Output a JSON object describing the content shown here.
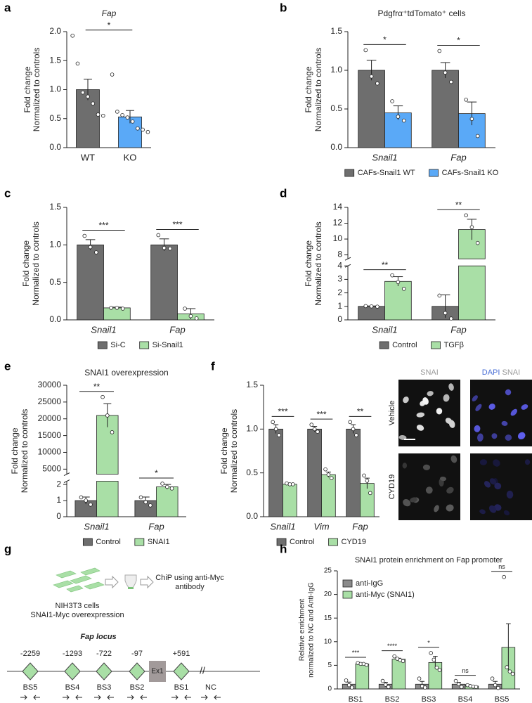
{
  "chart_data": [
    {
      "panel": "a",
      "type": "bar",
      "title": "Fap",
      "ylabel": [
        "Fold change",
        "Normalized to controls"
      ],
      "categories": [
        "WT",
        "KO"
      ],
      "series": [
        {
          "colors": [
            "#6e6e6e",
            "#5aa9f7"
          ],
          "values": [
            1.0,
            0.53
          ],
          "errors": [
            0.18,
            0.11
          ],
          "points": [
            [
              1.93,
              1.45,
              0.95,
              0.88,
              0.76,
              0.57,
              0.55
            ],
            [
              1.26,
              0.62,
              0.56,
              0.52,
              0.45,
              0.33,
              0.31,
              0.27
            ]
          ]
        }
      ],
      "significance": "*",
      "ylim": [
        0,
        2
      ],
      "yticks": [
        {
          "value": 0,
          "label": "0.0"
        },
        0.5,
        {
          "value": 1,
          "label": "1.0"
        },
        1.5,
        {
          "value": 2,
          "label": "2.0"
        }
      ]
    },
    {
      "panel": "b",
      "type": "bar",
      "title": "Pdgfrα⁺tdTomato⁺ cells",
      "ylabel": [
        "Fold change",
        "Normalized to controls"
      ],
      "categories": [
        "Snail1",
        "Fap"
      ],
      "category_style": "italic",
      "legend": "bottom",
      "series": [
        {
          "name": "CAFs-Snail1 WT",
          "color": "#6e6e6e",
          "values": [
            1.0,
            1.0
          ],
          "errors": [
            0.13,
            0.1
          ],
          "points": [
            [
              1.26,
              0.92,
              0.83
            ],
            [
              1.25,
              0.97,
              0.85
            ]
          ]
        },
        {
          "name": "CAFs-Snail1 KO",
          "color": "#5aa9f7",
          "values": [
            0.45,
            0.44
          ],
          "errors": [
            0.09,
            0.15
          ],
          "points": [
            [
              0.6,
              0.4,
              0.35
            ],
            [
              0.62,
              0.37,
              0.15
            ]
          ]
        }
      ],
      "significance": [
        "*",
        "*"
      ],
      "ylim": [
        0,
        1.5
      ],
      "yticks": [
        {
          "value": 0,
          "label": "0.0"
        },
        0.5,
        {
          "value": 1,
          "label": "1.0"
        },
        1.5
      ]
    },
    {
      "panel": "c",
      "type": "bar",
      "ylabel": [
        "Fold change",
        "Normalized to controls"
      ],
      "categories": [
        "Snail1",
        "Fap"
      ],
      "category_style": "italic",
      "legend": "bottom",
      "series": [
        {
          "name": "Si-C",
          "color": "#6e6e6e",
          "values": [
            1.0,
            1.0
          ],
          "errors": [
            0.07,
            0.08
          ],
          "points": [
            [
              1.12,
              0.97,
              0.9
            ],
            [
              1.13,
              0.96,
              0.95
            ]
          ]
        },
        {
          "name": "Si-Snail1",
          "color": "#a9dfa6",
          "values": [
            0.16,
            0.08
          ],
          "errors": [
            0.01,
            0.07
          ],
          "points": [
            [
              0.16,
              0.16,
              0.15
            ],
            [
              0.15,
              0.05,
              0.02
            ]
          ]
        }
      ],
      "significance": [
        "***",
        "***"
      ],
      "ylim": [
        0,
        1.5
      ],
      "yticks": [
        {
          "value": 0,
          "label": "0.0"
        },
        0.5,
        {
          "value": 1,
          "label": "1.0"
        },
        1.5
      ]
    },
    {
      "panel": "d",
      "type": "bar",
      "ylabel": [
        "Fold change",
        "Normalized to controls"
      ],
      "categories": [
        "Snail1",
        "Fap"
      ],
      "category_style": "italic",
      "legend": "bottom",
      "series": [
        {
          "name": "Control",
          "color": "#6e6e6e",
          "values": [
            1.0,
            1.0
          ],
          "errors": [
            0.03,
            0.85
          ],
          "points": [
            [
              1.02,
              1.0,
              0.98
            ],
            [
              1.8,
              0.5,
              0.1
            ]
          ]
        },
        {
          "name": "TGFβ",
          "color": "#a9dfa6",
          "values": [
            2.85,
            11.2
          ],
          "errors": [
            0.35,
            1.3
          ],
          "points": [
            [
              3.3,
              2.8,
              2.3
            ],
            [
              13.0,
              11.5,
              9.5
            ]
          ]
        }
      ],
      "significance": [
        "**",
        "**"
      ],
      "segments": [
        {
          "ylim": [
            0,
            4
          ],
          "yticks": [
            0,
            1,
            2,
            3,
            4
          ]
        },
        {
          "ylim": [
            7.5,
            14
          ],
          "yticks": [
            8,
            10,
            12,
            14
          ]
        }
      ]
    },
    {
      "panel": "e",
      "type": "bar",
      "title": "SNAI1 overexpression",
      "ylabel": [
        "Fold change",
        "Normalized to controls"
      ],
      "categories": [
        "Snail1",
        "Fap"
      ],
      "category_style": "italic",
      "legend": "bottom",
      "series": [
        {
          "name": "Control",
          "color": "#6e6e6e",
          "values": [
            1.0,
            1.0
          ],
          "errors": [
            0.22,
            0.22
          ],
          "points": [
            [
              1.2,
              1.0,
              0.75
            ],
            [
              1.2,
              0.9,
              0.7
            ]
          ]
        },
        {
          "name": "SNAI1",
          "color": "#a9dfa6",
          "values": [
            21000,
            1.85
          ],
          "errors": [
            3500,
            0.15
          ],
          "points": [
            [
              26500,
              21000,
              16000
            ],
            [
              2.05,
              1.85,
              1.75
            ]
          ]
        }
      ],
      "significance": [
        "**",
        "*"
      ],
      "segments": [
        {
          "ylim": [
            0,
            2.2
          ],
          "yticks": [
            0,
            1,
            2
          ]
        },
        {
          "ylim": [
            3500,
            30000
          ],
          "yticks": [
            5000,
            10000,
            15000,
            20000,
            25000,
            30000
          ]
        }
      ]
    },
    {
      "panel": "f",
      "type": "bar",
      "ylabel": [
        "Fold change",
        "Normalized to controls"
      ],
      "categories": [
        "Snail1",
        "Vim",
        "Fap"
      ],
      "category_style": "italic",
      "legend": "bottom",
      "series": [
        {
          "name": "Control",
          "color": "#6e6e6e",
          "values": [
            1.0,
            1.0,
            1.0
          ],
          "errors": [
            0.05,
            0.03,
            0.05
          ],
          "points": [
            [
              1.08,
              1.0,
              0.93
            ],
            [
              1.05,
              1.0,
              0.97
            ],
            [
              1.08,
              1.0,
              0.93
            ]
          ]
        },
        {
          "name": "CYD19",
          "color": "#a9dfa6",
          "values": [
            0.37,
            0.48,
            0.38
          ],
          "errors": [
            0.01,
            0.03,
            0.06
          ],
          "points": [
            [
              0.38,
              0.37,
              0.37
            ],
            [
              0.54,
              0.48,
              0.44
            ],
            [
              0.47,
              0.41,
              0.27
            ]
          ]
        }
      ],
      "significance": [
        "***",
        "***",
        "**"
      ],
      "ylim": [
        0,
        1.5
      ],
      "yticks": [
        {
          "value": 0,
          "label": "0.0"
        },
        0.5,
        {
          "value": 1,
          "label": "1.0"
        },
        1.5
      ]
    },
    {
      "panel": "h",
      "type": "bar",
      "title": "SNAI1 protein enrichment on Fap promoter",
      "ylabel": [
        "Relative enrichment",
        "normalized to NC and Anti-IgG"
      ],
      "categories": [
        "BS1",
        "BS2",
        "BS3",
        "BS4",
        "BS5"
      ],
      "legend": "top-left",
      "series": [
        {
          "name": "anti-IgG",
          "color": "#8a8a8a",
          "values": [
            1,
            1,
            1,
            1,
            1
          ],
          "errors": [
            0.45,
            0.4,
            0.6,
            0.4,
            0.6
          ],
          "points": [
            [
              1.8,
              0.8,
              0.3
            ],
            [
              1.7,
              0.9,
              0.4
            ],
            [
              2.2,
              0.6,
              0.3
            ],
            [
              1.7,
              1.0,
              0.4
            ],
            [
              2.2,
              0.8,
              0.2
            ]
          ]
        },
        {
          "name": "anti-Myc (SNAI1)",
          "color": "#a9dfa6",
          "values": [
            5.3,
            6.3,
            5.6,
            0.6,
            8.8
          ],
          "errors": [
            0.1,
            0.2,
            1.3,
            0.1,
            5.0
          ],
          "points": [
            [
              5.5,
              5.3,
              5.3,
              5.1
            ],
            [
              6.9,
              6.4,
              6.1,
              5.9
            ],
            [
              7.6,
              6.2,
              4.5,
              4.0
            ],
            [
              0.8,
              0.6,
              0.5,
              0.4
            ],
            [
              23.7,
              4.6,
              3.7,
              3.2
            ]
          ]
        }
      ],
      "significance": [
        "***",
        "****",
        "*",
        "ns",
        "ns"
      ],
      "ylim": [
        0,
        25
      ],
      "yticks": [
        0,
        5,
        10,
        15,
        20,
        25
      ]
    }
  ],
  "images_f": {
    "columns": [
      [
        "SNAI"
      ],
      [
        "DAPI",
        "SNAI"
      ]
    ],
    "rows": [
      "Vehicle",
      "CYD19"
    ]
  },
  "diagram_g": {
    "panel": "g",
    "cells_label": [
      "NIH3T3 cells",
      "SNAI1-Myc overexpression"
    ],
    "step_label": [
      "ChiP using anti-Myc",
      "antibody"
    ],
    "locus_label": "Fap locus",
    "exon": "Ex1",
    "control": "NC",
    "sites": [
      {
        "position": "-2259",
        "name": "BS5"
      },
      {
        "position": "-1293",
        "name": "BS4"
      },
      {
        "position": "-722",
        "name": "BS3"
      },
      {
        "position": "-97",
        "name": "BS2"
      },
      {
        "position": "+591",
        "name": "BS1"
      }
    ]
  }
}
